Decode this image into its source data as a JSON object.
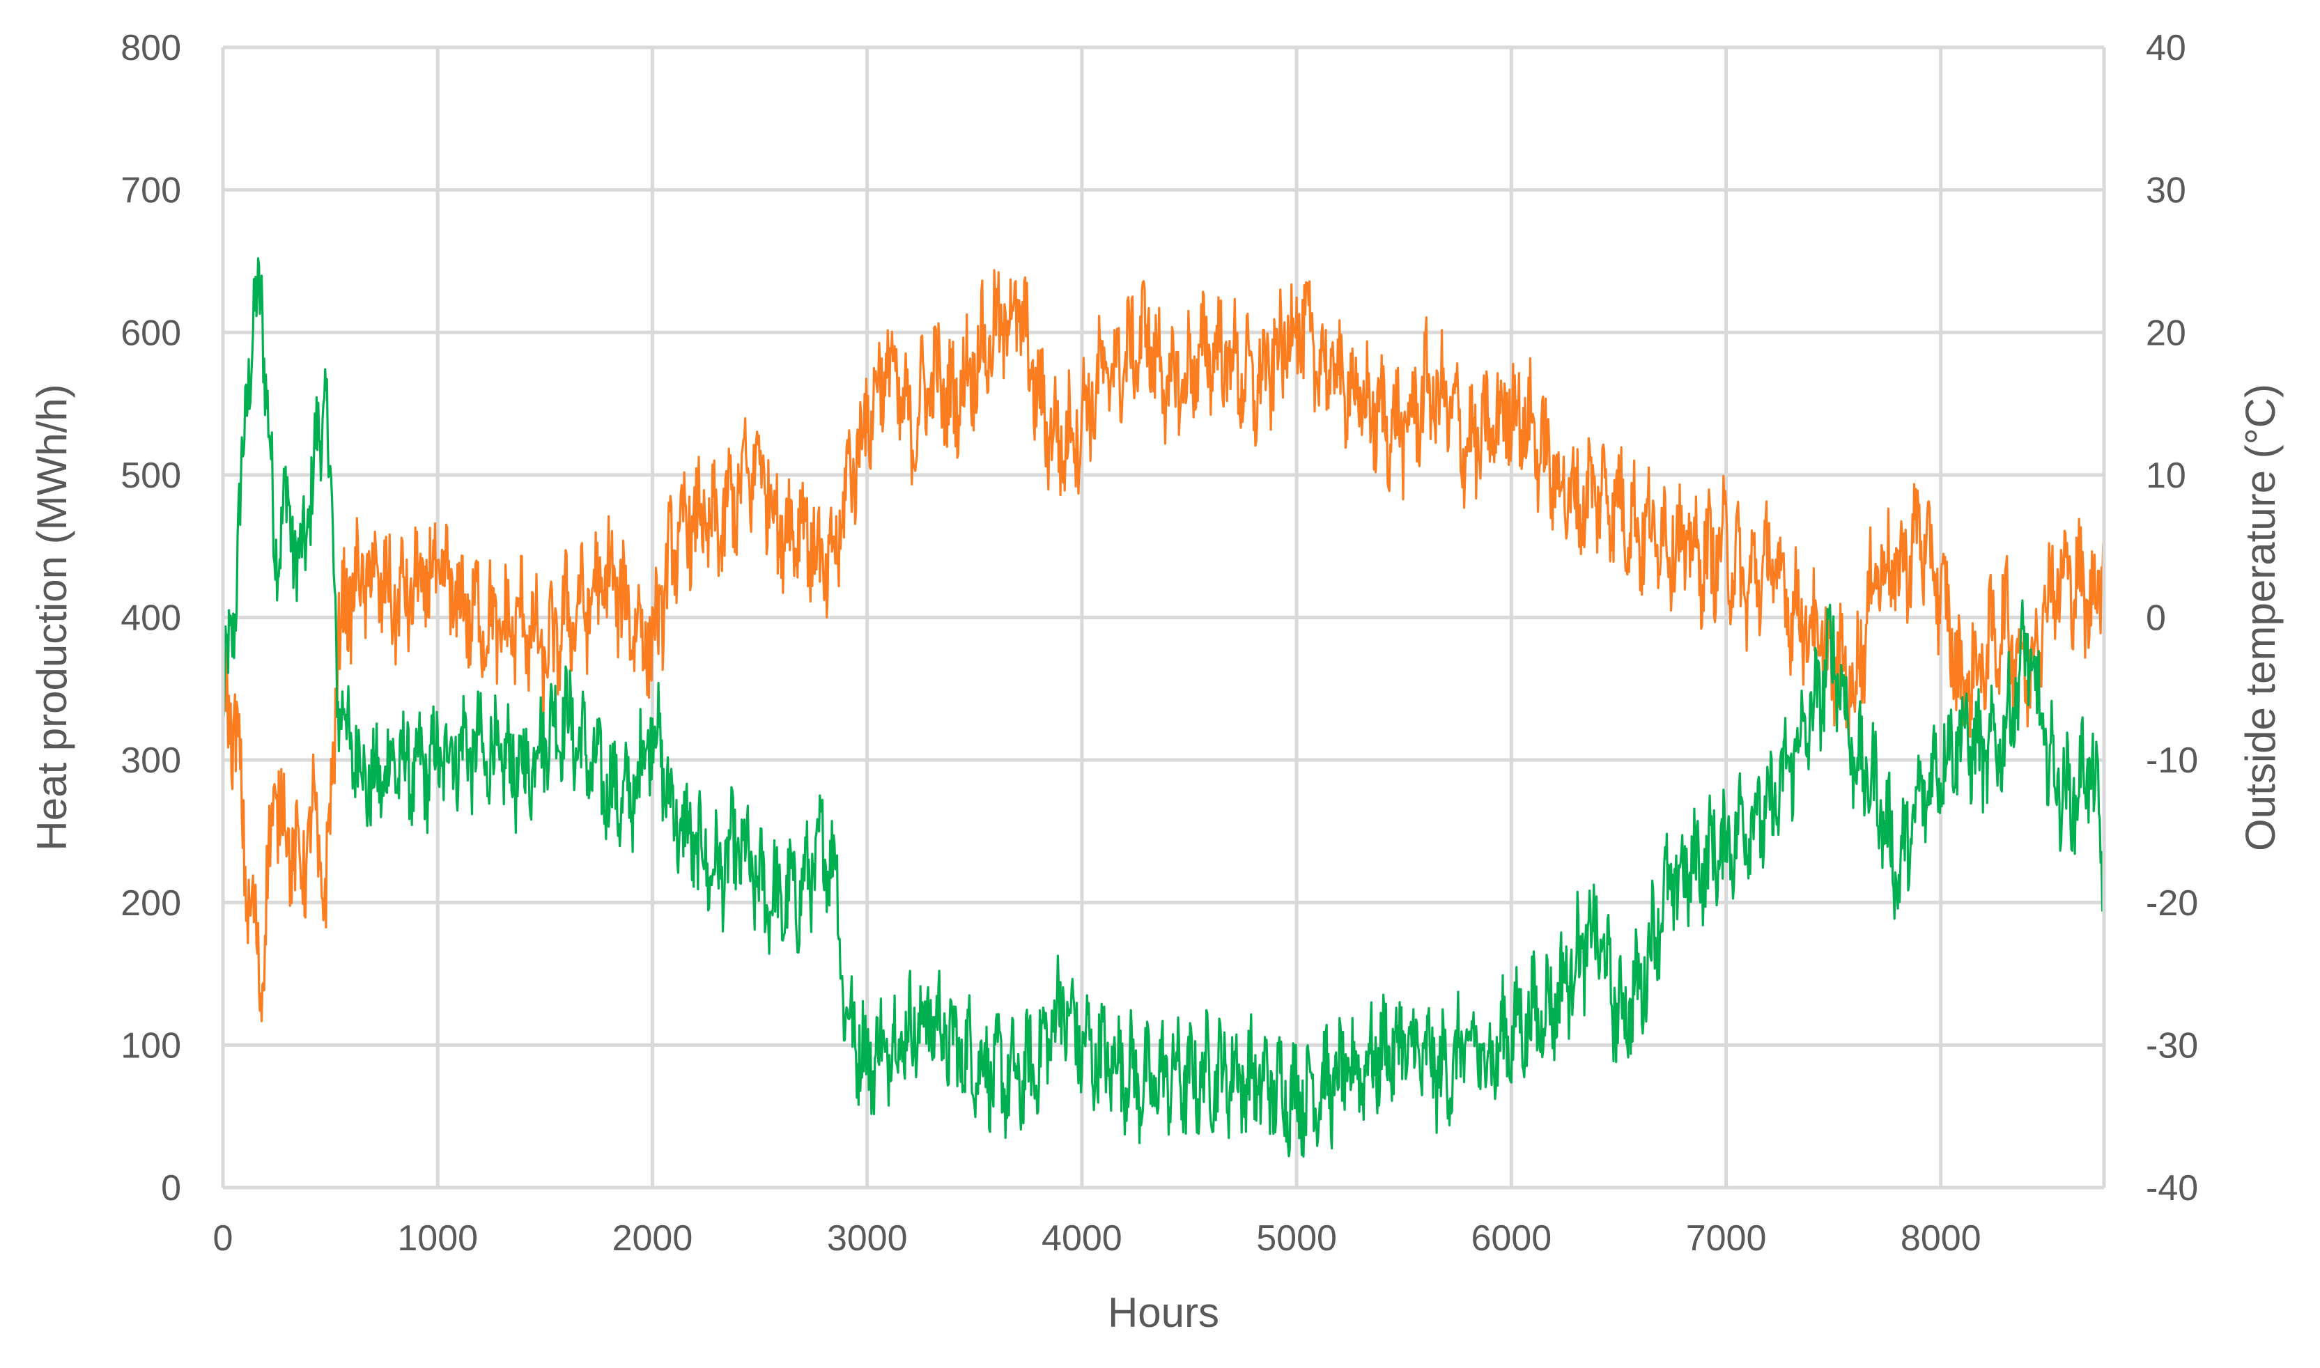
{
  "chart_data": {
    "type": "line",
    "title": "",
    "xlabel": "Hours",
    "ylabel": "Heat production (MWh/h)",
    "y2label": "Outside temperature (°C)",
    "xlim": [
      0,
      8760
    ],
    "ylim": [
      0,
      800
    ],
    "y2lim": [
      -40,
      40
    ],
    "grid": true,
    "legend": "none",
    "x_ticks": [
      "0",
      "1000",
      "2000",
      "3000",
      "4000",
      "5000",
      "6000",
      "7000",
      "8000"
    ],
    "y_ticks": [
      "0",
      "100",
      "200",
      "300",
      "400",
      "500",
      "600",
      "700",
      "800"
    ],
    "y2_ticks": [
      "-40",
      "-30",
      "-20",
      "-10",
      "0",
      "10",
      "20",
      "30",
      "40"
    ],
    "colors": {
      "heat": "#00b050",
      "temperature": "#fb7d20"
    },
    "series": [
      {
        "axis": "left",
        "color": "#00b050",
        "x": [
          0,
          60,
          120,
          180,
          240,
          300,
          360,
          420,
          480,
          540,
          600,
          700,
          800,
          900,
          1000,
          1100,
          1200,
          1300,
          1400,
          1500,
          1600,
          1700,
          1800,
          1900,
          2000,
          2100,
          2200,
          2300,
          2400,
          2500,
          2600,
          2700,
          2800,
          2850,
          2900,
          3000,
          3100,
          3200,
          3300,
          3400,
          3500,
          3600,
          3700,
          3800,
          3900,
          4000,
          4100,
          4200,
          4300,
          4400,
          4500,
          4600,
          4700,
          4800,
          4900,
          5000,
          5100,
          5200,
          5300,
          5400,
          5500,
          5600,
          5700,
          5800,
          5900,
          6000,
          6100,
          6200,
          6300,
          6400,
          6500,
          6600,
          6700,
          6800,
          6900,
          7000,
          7100,
          7200,
          7300,
          7400,
          7500,
          7600,
          7700,
          7800,
          7900,
          8000,
          8100,
          8200,
          8300,
          8400,
          8500,
          8600,
          8700,
          8760
        ],
        "y": [
          330,
          420,
          580,
          630,
          450,
          480,
          430,
          500,
          560,
          340,
          310,
          280,
          300,
          290,
          300,
          310,
          305,
          300,
          290,
          320,
          330,
          300,
          280,
          270,
          330,
          260,
          240,
          220,
          240,
          210,
          200,
          210,
          240,
          230,
          120,
          90,
          100,
          110,
          120,
          100,
          90,
          80,
          75,
          90,
          130,
          100,
          90,
          85,
          70,
          80,
          75,
          80,
          80,
          75,
          70,
          65,
          70,
          75,
          85,
          95,
          100,
          90,
          80,
          100,
          90,
          110,
          120,
          130,
          160,
          180,
          120,
          140,
          200,
          220,
          230,
          240,
          260,
          260,
          300,
          330,
          380,
          300,
          280,
          220,
          270,
          300,
          320,
          300,
          320,
          380,
          300,
          270,
          300,
          220
        ]
      },
      {
        "axis": "right",
        "color": "#fb7d20",
        "x": [
          0,
          60,
          120,
          180,
          240,
          300,
          360,
          420,
          480,
          540,
          600,
          700,
          800,
          900,
          1000,
          1100,
          1200,
          1300,
          1400,
          1500,
          1600,
          1700,
          1800,
          1900,
          2000,
          2100,
          2200,
          2300,
          2400,
          2500,
          2600,
          2700,
          2800,
          2850,
          2900,
          3000,
          3100,
          3200,
          3300,
          3400,
          3500,
          3600,
          3700,
          3800,
          3900,
          4000,
          4100,
          4200,
          4300,
          4400,
          4500,
          4600,
          4700,
          4800,
          4900,
          5000,
          5100,
          5200,
          5300,
          5400,
          5500,
          5600,
          5700,
          5800,
          5900,
          6000,
          6100,
          6200,
          6300,
          6400,
          6500,
          6600,
          6700,
          6800,
          6900,
          7000,
          7100,
          7200,
          7300,
          7400,
          7500,
          7600,
          7700,
          7800,
          7900,
          8000,
          8100,
          8200,
          8300,
          8400,
          8500,
          8600,
          8700,
          8760
        ],
        "y": [
          -5,
          -8,
          -20,
          -25,
          -12,
          -15,
          -18,
          -14,
          -20,
          -1,
          2,
          3,
          1,
          2,
          3,
          1,
          0,
          -1,
          0,
          -3,
          0,
          1,
          3,
          0,
          -2,
          5,
          7,
          6,
          9,
          11,
          6,
          7,
          3,
          4,
          9,
          14,
          18,
          13,
          17,
          15,
          18,
          20,
          22,
          15,
          12,
          14,
          17,
          18,
          20,
          16,
          17,
          19,
          18,
          16,
          18,
          21,
          18,
          17,
          15,
          14,
          13,
          16,
          15,
          12,
          13,
          15,
          13,
          10,
          8,
          9,
          8,
          6,
          6,
          5,
          4,
          5,
          2,
          4,
          1,
          -1,
          -3,
          -5,
          4,
          3,
          6,
          2,
          -5,
          -3,
          0,
          -4,
          2,
          3,
          1,
          4
        ]
      }
    ]
  }
}
